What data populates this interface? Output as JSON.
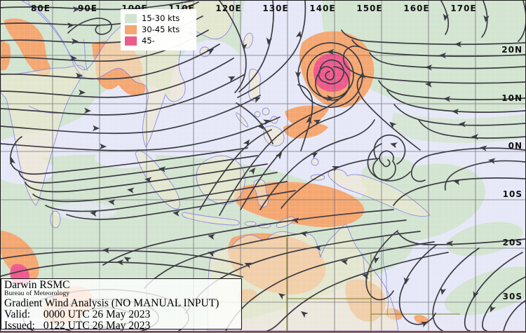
{
  "axes": {
    "lon_labels": [
      "80E",
      "90E",
      "100E",
      "110E",
      "120E",
      "130E",
      "140E",
      "150E",
      "160E",
      "170E"
    ],
    "lat_labels": [
      "20N",
      "10N",
      "0N",
      "10S",
      "20S",
      "30S"
    ]
  },
  "legend": {
    "items": [
      {
        "label": "15-30 kts",
        "color": "#d3e4d1"
      },
      {
        "label": "30-45 kts",
        "color": "#f5a771"
      },
      {
        "label": "45-",
        "color": "#ee5a8d"
      }
    ]
  },
  "info_box": {
    "agency": "Darwin RSMC",
    "bureau": "Bureau of Meteorology",
    "product": "Gradient Wind Analysis (NO MANUAL INPUT)",
    "valid_label": "Valid:",
    "valid_value": "0000 UTC 26 May 2023",
    "issued_label": "Issued:",
    "issued_value": "0122 UTC 26 May 2023"
  },
  "colors": {
    "ocean": "#e6e8f7",
    "wind_15_30": "#d3e4d1",
    "wind_30_45": "#f5a771",
    "wind_45_plus": "#ee5a8d",
    "land": "#efe9cd",
    "coastline": "#8080e8",
    "streamline": "#3c3c44",
    "gridline": "#6a6a72",
    "state_border": "#7a7a28",
    "frame_bottom": "#a93434"
  }
}
